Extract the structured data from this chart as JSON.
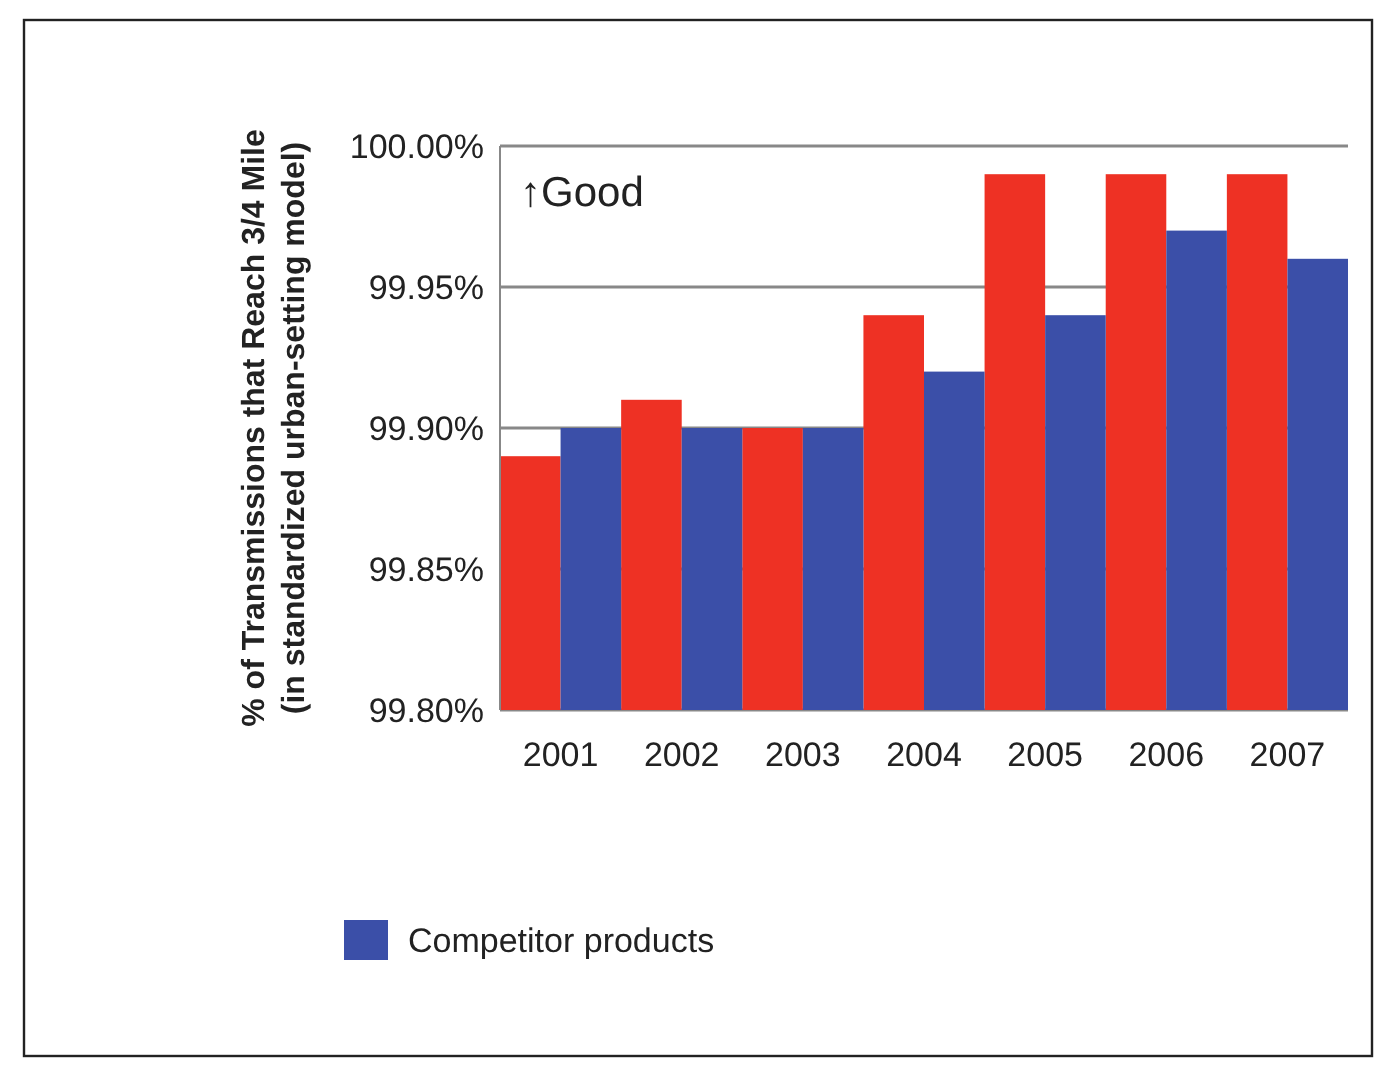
{
  "chart_data": {
    "type": "bar",
    "ylabel": "% of Transmissions that Reach 3/4 Mile (in standardized urban-setting model)",
    "categories": [
      "2001",
      "2002",
      "2003",
      "2004",
      "2005",
      "2006",
      "2007"
    ],
    "series": [
      {
        "color": "#ee3124",
        "values": [
          99.89,
          99.91,
          99.9,
          99.94,
          99.99,
          99.99,
          99.99
        ]
      },
      {
        "name": "Competitor products",
        "color": "#3b4fa8",
        "values": [
          99.9,
          99.9,
          99.9,
          99.92,
          99.94,
          99.97,
          99.96
        ]
      }
    ],
    "ylim": [
      99.8,
      100
    ],
    "yticks": [
      {
        "value": 99.8,
        "label": "99.80%"
      },
      {
        "value": 99.85,
        "label": "99.85%"
      },
      {
        "value": 99.9,
        "label": "99.90%"
      },
      {
        "value": 99.95,
        "label": "99.95%"
      },
      {
        "value": 100,
        "label": "100.00%"
      }
    ],
    "grid": "y",
    "legend": "bottom",
    "annotations": [
      "↑Good"
    ]
  }
}
